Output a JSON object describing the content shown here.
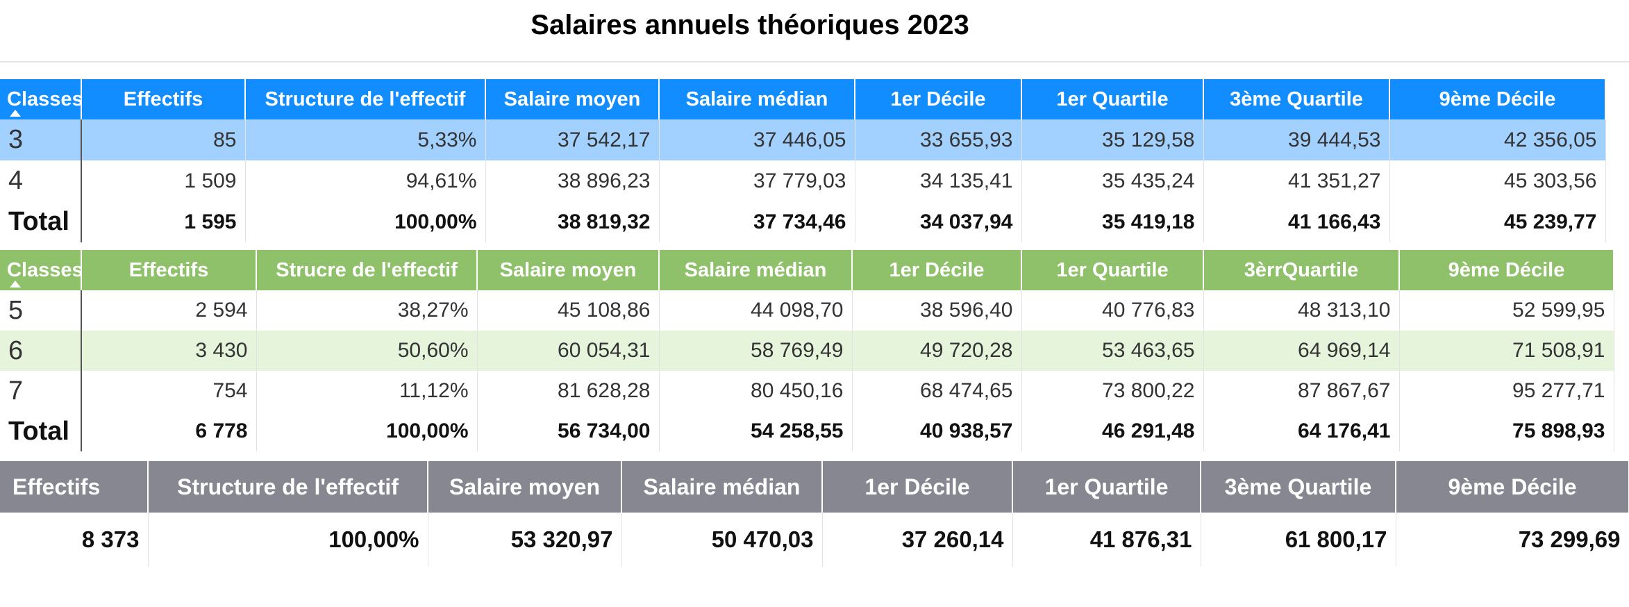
{
  "title": "Salaires annuels théoriques 2023",
  "table_blue": {
    "headers": [
      "Classes",
      "Effectifs",
      "Structure de l'effectif",
      "Salaire moyen",
      "Salaire médian",
      "1er Décile",
      "1er Quartile",
      "3ème Quartile",
      "9ème Décile"
    ],
    "rows": [
      {
        "classe": "3",
        "cells": [
          "85",
          "5,33%",
          "37 542,17",
          "37 446,05",
          "33 655,93",
          "35 129,58",
          "39 444,53",
          "42 356,05"
        ]
      },
      {
        "classe": "4",
        "cells": [
          "1 509",
          "94,61%",
          "38 896,23",
          "37 779,03",
          "34 135,41",
          "35 435,24",
          "41 351,27",
          "45 303,56"
        ]
      }
    ],
    "total": {
      "label": "Total",
      "cells": [
        "1 595",
        "100,00%",
        "38 819,32",
        "37 734,46",
        "34 037,94",
        "35 419,18",
        "41 166,43",
        "45 239,77"
      ]
    }
  },
  "table_green": {
    "headers": [
      "Classes",
      "Effectifs",
      "Strucre de l'effectif",
      "Salaire moyen",
      "Salaire médian",
      "1er Décile",
      "1er Quartile",
      "3èrrQuartile",
      "9ème Décile"
    ],
    "rows": [
      {
        "classe": "5",
        "cells": [
          "2 594",
          "38,27%",
          "45 108,86",
          "44 098,70",
          "38 596,40",
          "40 776,83",
          "48 313,10",
          "52 599,95"
        ]
      },
      {
        "classe": "6",
        "cells": [
          "3 430",
          "50,60%",
          "60 054,31",
          "58 769,49",
          "49 720,28",
          "53 463,65",
          "64 969,14",
          "71 508,91"
        ]
      },
      {
        "classe": "7",
        "cells": [
          "754",
          "11,12%",
          "81 628,28",
          "80 450,16",
          "68 474,65",
          "73 800,22",
          "87 867,67",
          "95 277,71"
        ]
      }
    ],
    "total": {
      "label": "Total",
      "cells": [
        "6 778",
        "100,00%",
        "56 734,00",
        "54 258,55",
        "40 938,57",
        "46 291,48",
        "64 176,41",
        "75 898,93"
      ]
    }
  },
  "table_summary": {
    "headers": [
      "Effectifs",
      "Structure de l'effectif",
      "Salaire moyen",
      "Salaire médian",
      "1er Décile",
      "1er Quartile",
      "3ème Quartile",
      "9ème Décile"
    ],
    "cells": [
      "8 373",
      "100,00%",
      "53 320,97",
      "50 470,03",
      "37 260,14",
      "41 876,31",
      "61 800,17",
      "73 299,69"
    ]
  },
  "colors": {
    "blue_header": "#118dff",
    "blue_selected_row": "#a3d1ff",
    "green_header": "#8fc06a",
    "green_alt_row": "#e6f4dc",
    "grey_header": "#878791"
  }
}
